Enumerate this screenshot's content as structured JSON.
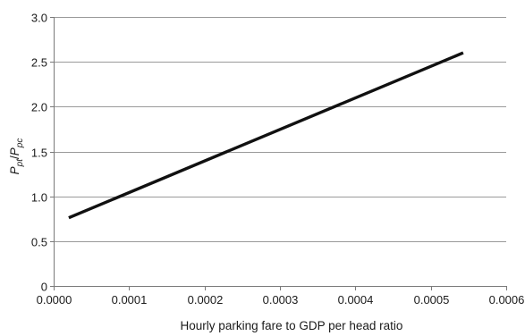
{
  "chart_data": {
    "type": "line",
    "title": "",
    "xlabel": "Hourly parking fare to GDP per head ratio",
    "ylabel": {
      "main": "P",
      "sub1": "pt",
      "slash": "/",
      "main2": "P",
      "sub2": "pc"
    },
    "xlim": [
      0,
      0.0006
    ],
    "ylim": [
      0,
      3.0
    ],
    "x_ticks": [
      "0.0000",
      "0.0001",
      "0.0002",
      "0.0003",
      "0.0004",
      "0.0005",
      "0.0006"
    ],
    "x_tick_values": [
      0,
      0.0001,
      0.0002,
      0.0003,
      0.0004,
      0.0005,
      0.0006
    ],
    "y_ticks": [
      "0",
      "0.5",
      "1.0",
      "1.5",
      "2.0",
      "2.5",
      "3.0"
    ],
    "y_tick_values": [
      0,
      0.5,
      1.0,
      1.5,
      2.0,
      2.5,
      3.0
    ],
    "grid": "horizontal",
    "legend": "none",
    "series": [
      {
        "color": "#111111",
        "x": [
          2e-05,
          0.000543
        ],
        "y": [
          0.76,
          2.6
        ]
      }
    ]
  }
}
